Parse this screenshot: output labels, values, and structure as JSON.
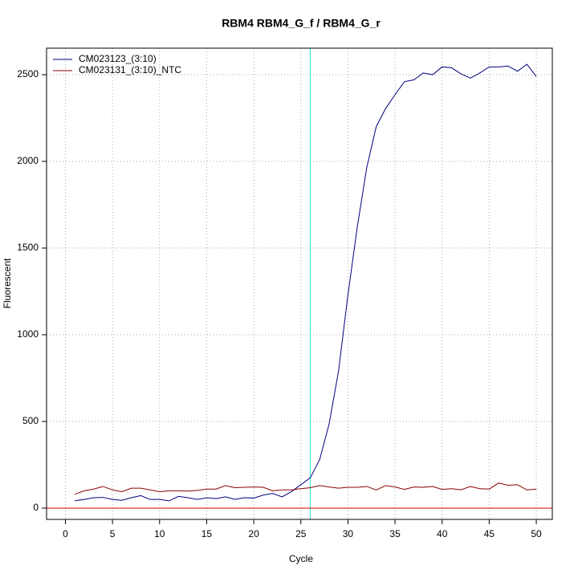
{
  "chart_data": {
    "type": "line",
    "title": "RBM4  RBM4_G_f / RBM4_G_r",
    "x_label": "Cycle",
    "y_label": "Fluorescent",
    "x": [
      1,
      2,
      3,
      4,
      5,
      6,
      7,
      8,
      9,
      10,
      11,
      12,
      13,
      14,
      15,
      16,
      17,
      18,
      19,
      20,
      21,
      22,
      23,
      24,
      25,
      26,
      27,
      28,
      29,
      30,
      31,
      32,
      33,
      34,
      35,
      36,
      37,
      38,
      39,
      40,
      41,
      42,
      43,
      44,
      45,
      46,
      47,
      48,
      49,
      50
    ],
    "series": [
      {
        "name": "CM023123_(3:10)",
        "color": "#000080",
        "values": [
          42,
          50,
          60,
          62,
          50,
          45,
          60,
          72,
          50,
          50,
          42,
          68,
          60,
          50,
          60,
          55,
          65,
          50,
          60,
          58,
          75,
          85,
          65,
          95,
          135,
          175,
          280,
          485,
          790,
          1230,
          1625,
          1965,
          2200,
          2305,
          2385,
          2460,
          2470,
          2510,
          2500,
          2545,
          2540,
          2505,
          2480,
          2510,
          2545,
          2545,
          2550,
          2520,
          2560,
          2490
        ]
      },
      {
        "name": "CM023131_(3:10)_NTC",
        "color": "#8b0000",
        "values": [
          80,
          100,
          110,
          125,
          105,
          95,
          115,
          115,
          105,
          95,
          100,
          100,
          98,
          102,
          110,
          110,
          130,
          118,
          120,
          122,
          120,
          100,
          105,
          105,
          112,
          118,
          130,
          122,
          115,
          120,
          120,
          125,
          105,
          130,
          122,
          108,
          122,
          120,
          125,
          108,
          112,
          106,
          125,
          112,
          110,
          145,
          132,
          135,
          105,
          110
        ]
      }
    ],
    "xlim": [
      -2,
      51.7
    ],
    "ylim": [
      -65,
      2653
    ],
    "xticks": [
      0,
      5,
      10,
      15,
      20,
      25,
      30,
      35,
      40,
      45,
      50
    ],
    "yticks": [
      0,
      500,
      1000,
      1500,
      2000,
      2500
    ],
    "grid": true,
    "legend": "top-left",
    "vline": 26,
    "vline_color": "#40e0d0",
    "hline": 0,
    "hline_color": "#dd0000"
  }
}
